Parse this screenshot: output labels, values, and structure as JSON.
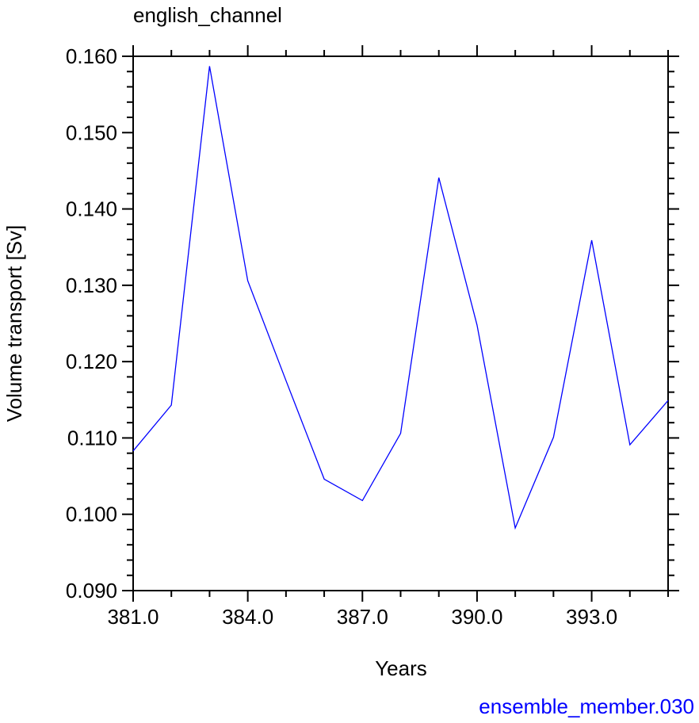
{
  "chart_data": {
    "type": "line",
    "title": "english_channel",
    "xlabel": "Years",
    "ylabel": "Volume transport [Sv]",
    "subtitle": "ensemble_member.030",
    "xlim": [
      381,
      395
    ],
    "ylim": [
      0.09,
      0.16
    ],
    "x_ticks": [
      381,
      384,
      387,
      390,
      393
    ],
    "x_tick_labels": [
      "381.0",
      "384.0",
      "387.0",
      "390.0",
      "393.0"
    ],
    "y_ticks": [
      0.09,
      0.1,
      0.11,
      0.12,
      0.13,
      0.14,
      0.15,
      0.16
    ],
    "y_tick_labels": [
      "0.090",
      "0.100",
      "0.110",
      "0.120",
      "0.130",
      "0.140",
      "0.150",
      "0.160"
    ],
    "grid": false,
    "series": [
      {
        "color": "#0000ff",
        "x": [
          381,
          382,
          383,
          384,
          385,
          386,
          387,
          388,
          389,
          390,
          391,
          392,
          393,
          394,
          395
        ],
        "y": [
          0.1083,
          0.1143,
          0.1587,
          0.1306,
          0.1175,
          0.1046,
          0.1018,
          0.1106,
          0.1441,
          0.1248,
          0.0982,
          0.1101,
          0.1359,
          0.1091,
          0.1149
        ]
      }
    ],
    "subtitle_color": "#0000ff"
  }
}
